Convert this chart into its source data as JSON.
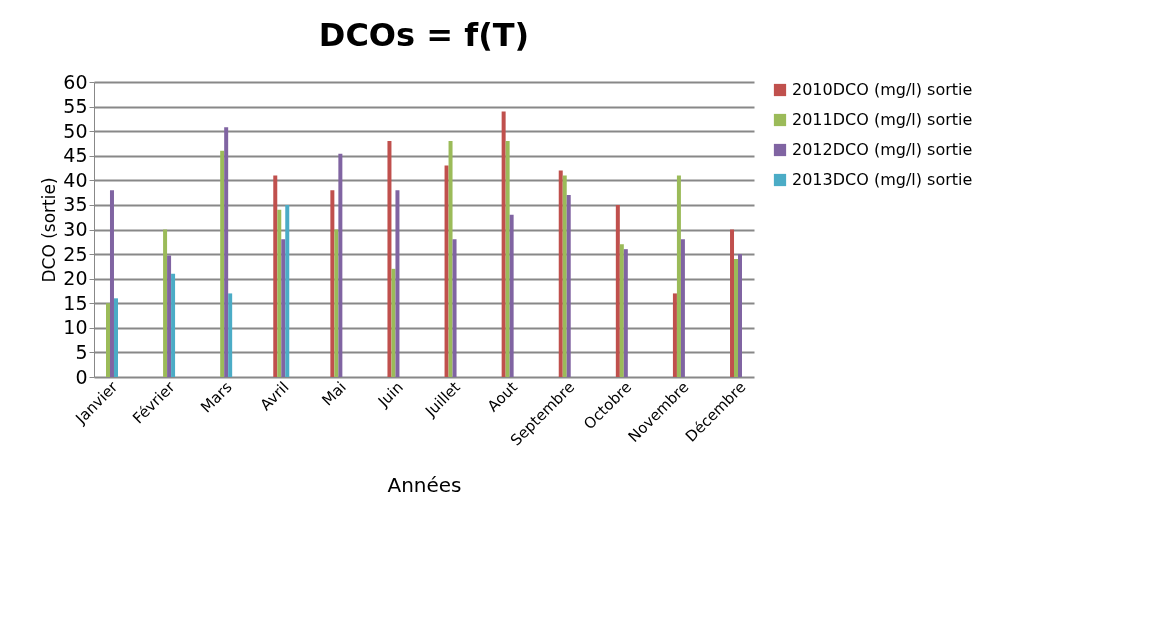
{
  "chart_data": {
    "type": "bar",
    "title": "DCOs = f(T)",
    "xlabel": "Années",
    "ylabel": "DCO (sortie)",
    "categories": [
      "Janvier",
      "Février",
      "Mars",
      "Avril",
      "Mai",
      "Juin",
      "Juillet",
      "Aout",
      "Septembre",
      "Octobre",
      "Novembre",
      "Décembre"
    ],
    "series": [
      {
        "name": "2010DCO (mg/l) sortie",
        "color": "#c0504d",
        "values": [
          null,
          null,
          null,
          41,
          38,
          48,
          43,
          54,
          42,
          35,
          17,
          30
        ]
      },
      {
        "name": "2011DCO (mg/l) sortie",
        "color": "#9bbb59",
        "values": [
          15,
          30,
          46,
          34,
          30,
          22,
          48,
          48,
          41,
          27,
          41,
          24
        ]
      },
      {
        "name": "2012DCO (mg/l) sortie",
        "color": "#8064a2",
        "values": [
          38,
          24.7,
          50.8,
          28,
          45.4,
          38,
          28,
          33,
          37,
          26,
          28,
          25
        ]
      },
      {
        "name": "2013DCO (mg/l) sortie",
        "color": "#4bacc6",
        "values": [
          16,
          21,
          17,
          35,
          null,
          null,
          null,
          null,
          null,
          null,
          null,
          null
        ]
      }
    ],
    "ylim": [
      0,
      60
    ],
    "yticks": [
      0,
      5,
      10,
      15,
      20,
      25,
      30,
      35,
      40,
      45,
      50,
      55,
      60
    ],
    "grid": "y",
    "legend": "right"
  }
}
